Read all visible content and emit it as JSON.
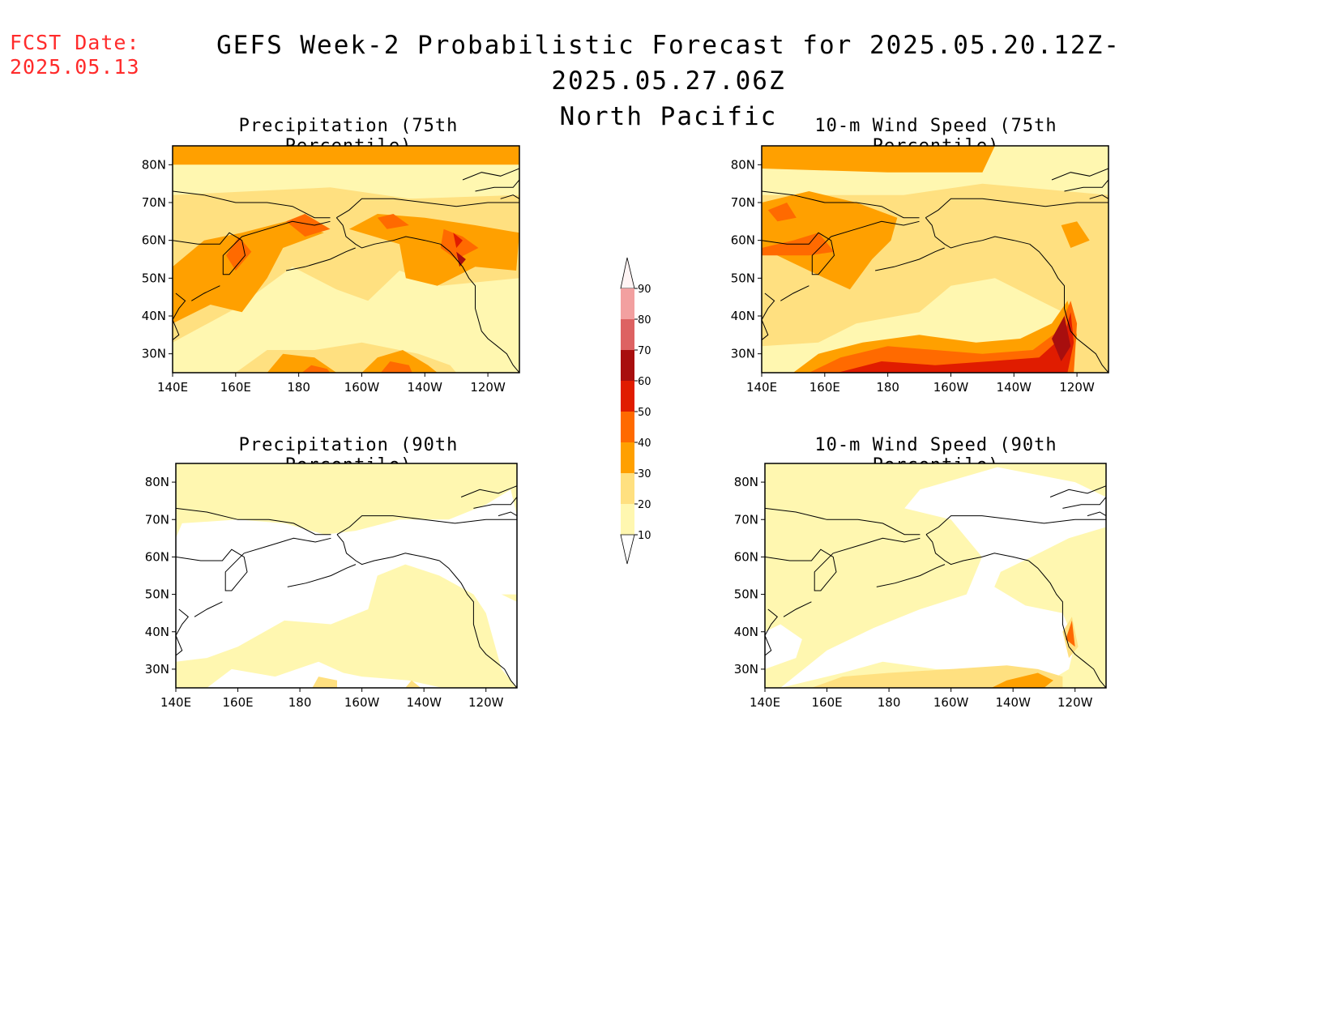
{
  "header": {
    "fcst_label": "FCST Date:",
    "fcst_date": "2025.05.13",
    "title_line1": "GEFS Week-2 Probabilistic Forecast for 2025.05.20.12Z-2025.05.27.06Z",
    "title_line2": "North Pacific"
  },
  "panels": [
    {
      "title": "Precipitation (75th Percentile)"
    },
    {
      "title": "10-m Wind Speed (75th Percentile)"
    },
    {
      "title": "Precipitation (90th Percentile)"
    },
    {
      "title": "10-m Wind Speed (90th Percentile)"
    }
  ],
  "axes": {
    "lon_ticks": [
      "140E",
      "160E",
      "180",
      "160W",
      "140W",
      "120W"
    ],
    "lat_ticks": [
      "80N",
      "70N",
      "60N",
      "50N",
      "40N",
      "30N"
    ]
  },
  "colorbar": {
    "labels": [
      "90",
      "80",
      "70",
      "60",
      "50",
      "40",
      "30",
      "20",
      "10"
    ],
    "colors": [
      "#fde3e3",
      "#f2a0a0",
      "#dd6262",
      "#a80e0e",
      "#e01c00",
      "#ff6a00",
      "#ffa000",
      "#ffe080",
      "#fff7b0"
    ]
  },
  "palette": {
    "white": "#ffffff",
    "c10": "#fff7b0",
    "c20": "#ffe080",
    "c30": "#ffa000",
    "c40": "#ff6a00",
    "c50": "#e01c00",
    "c60": "#a80e0e"
  }
}
